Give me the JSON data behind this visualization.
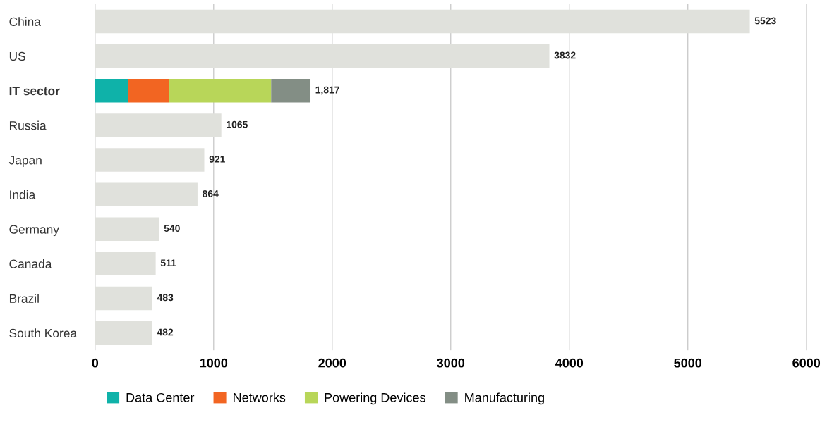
{
  "chart_data": {
    "type": "bar",
    "orientation": "horizontal",
    "stacked": true,
    "categories": [
      "China",
      "US",
      "IT sector",
      "Russia",
      "Japan",
      "India",
      "Germany",
      "Canada",
      "Brazil",
      "South Korea"
    ],
    "series": [
      {
        "color": "#e0e1dc",
        "values": [
          5523,
          3832,
          null,
          1065,
          921,
          864,
          540,
          511,
          483,
          482
        ]
      },
      {
        "name": "Data Center",
        "color": "#0fb2a9",
        "values": [
          null,
          null,
          277,
          null,
          null,
          null,
          null,
          null,
          null,
          null
        ]
      },
      {
        "name": "Networks",
        "color": "#f26522",
        "values": [
          null,
          null,
          347,
          null,
          null,
          null,
          null,
          null,
          null,
          null
        ]
      },
      {
        "name": "Powering Devices",
        "color": "#b8d659",
        "values": [
          null,
          null,
          861,
          null,
          null,
          null,
          null,
          null,
          null,
          null
        ]
      },
      {
        "name": "Manufacturing",
        "color": "#838e85",
        "values": [
          null,
          null,
          332,
          null,
          null,
          null,
          null,
          null,
          null,
          null
        ]
      }
    ],
    "totals": [
      "5523",
      "3832",
      "1,817",
      "1065",
      "921",
      "864",
      "540",
      "511",
      "483",
      "482"
    ],
    "xlim": [
      0,
      6000
    ],
    "xticks": [
      0,
      1000,
      2000,
      3000,
      4000,
      5000,
      6000
    ],
    "grid": "x",
    "legend": "bottom"
  }
}
